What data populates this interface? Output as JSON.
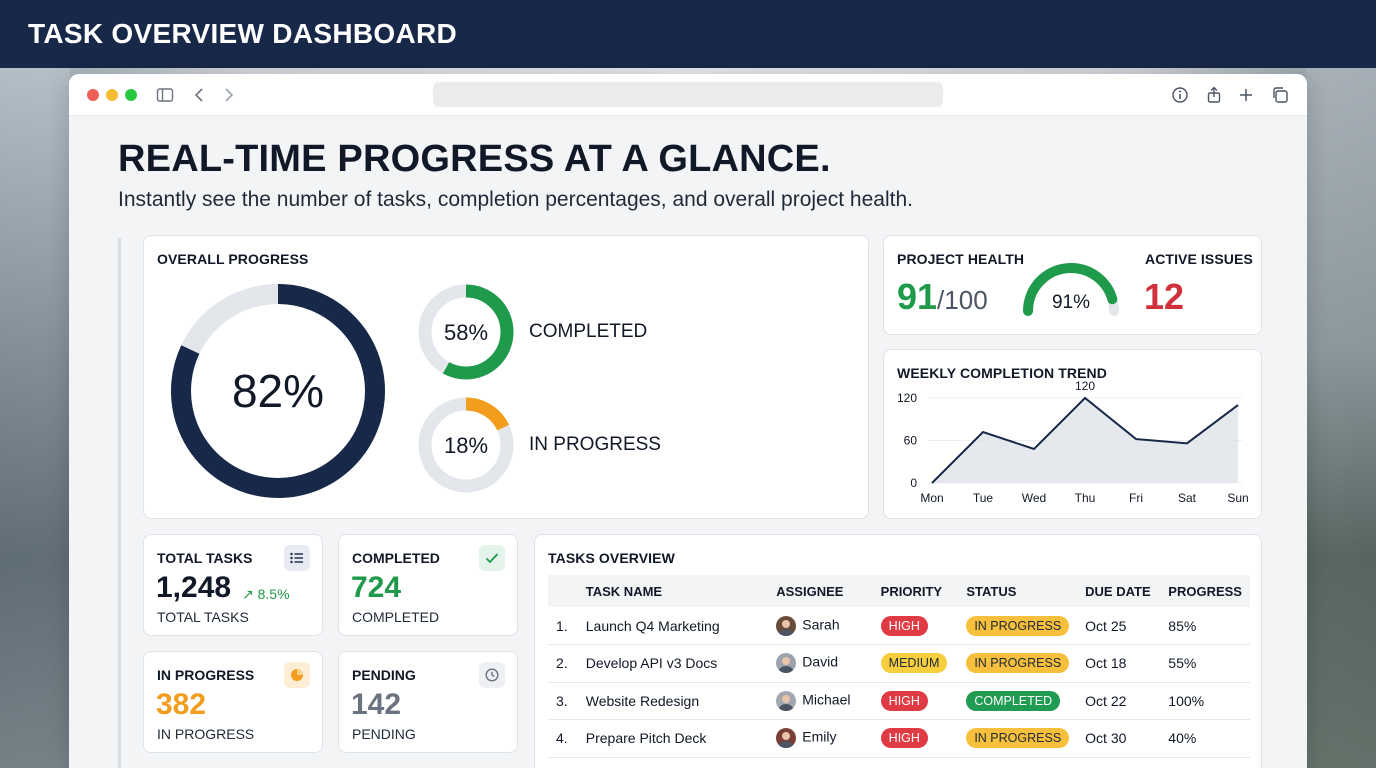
{
  "header": {
    "title": "TASK OVERVIEW DASHBOARD"
  },
  "hero": {
    "title": "REAL-TIME PROGRESS AT A GLANCE.",
    "subtitle": "Instantly see the number of tasks, completion percentages, and overall project health."
  },
  "overall_progress": {
    "title": "OVERALL PROGRESS",
    "main_percent": 82,
    "main_label": "82%",
    "completed": {
      "percent": 58,
      "label": "58%",
      "text": "COMPLETED"
    },
    "in_progress": {
      "percent": 18,
      "label": "18%",
      "text": "IN PROGRESS"
    }
  },
  "project_health": {
    "title": "PROJECT HEALTH",
    "score": "91",
    "max": "/100",
    "gauge_percent": 91,
    "gauge_label": "91%",
    "issues_title": "ACTIVE ISSUES",
    "issues_value": "12"
  },
  "chart_data": {
    "type": "line",
    "title": "WEEKLY COMPLETION TREND",
    "categories": [
      "Mon",
      "Tue",
      "Wed",
      "Thu",
      "Fri",
      "Sat",
      "Sun"
    ],
    "values": [
      0,
      72,
      48,
      120,
      62,
      56,
      110
    ],
    "y_ticks": [
      0,
      60,
      120
    ],
    "ylim": [
      0,
      120
    ],
    "annotation": {
      "category": "Thu",
      "text": "120"
    },
    "xlabel": "",
    "ylabel": ""
  },
  "stats": {
    "total": {
      "title": "TOTAL TASKS",
      "value": "1,248",
      "trend": "↗ 8.5%",
      "sub": "TOTAL TASKS"
    },
    "completed": {
      "title": "COMPLETED",
      "value": "724",
      "sub": "COMPLETED"
    },
    "in_progress": {
      "title": "IN PROGRESS",
      "value": "382",
      "sub": "IN PROGRESS"
    },
    "pending": {
      "title": "PENDING",
      "value": "142",
      "sub": "PENDING"
    }
  },
  "tasks": {
    "title": "TASKS OVERVIEW",
    "columns": [
      "TASK NAME",
      "ASSIGNEE",
      "PRIORITY",
      "STATUS",
      "DUE DATE",
      "PROGRESS"
    ],
    "rows": [
      {
        "num": "1.",
        "name": "Launch Q4 Marketing",
        "assignee": "Sarah",
        "priority": "HIGH",
        "status": "IN PROGRESS",
        "due": "Oct 25",
        "progress": "85%"
      },
      {
        "num": "2.",
        "name": "Develop API v3 Docs",
        "assignee": "David",
        "priority": "MEDIUM",
        "status": "IN PROGRESS",
        "due": "Oct 18",
        "progress": "55%"
      },
      {
        "num": "3.",
        "name": "Website Redesign",
        "assignee": "Michael",
        "priority": "HIGH",
        "status": "COMPLETED",
        "due": "Oct 22",
        "progress": "100%"
      },
      {
        "num": "4.",
        "name": "Prepare Pitch Deck",
        "assignee": "Emily",
        "priority": "HIGH",
        "status": "IN PROGRESS",
        "due": "Oct 30",
        "progress": "40%"
      }
    ]
  },
  "colors": {
    "navy": "#172848",
    "green": "#1e9a4a",
    "orange": "#f29d1d",
    "red": "#d0313a",
    "track": "#e3e6ea",
    "high_bg": "#e03a44",
    "medium_bg": "#f7cf3e",
    "inprogress_bg": "#f6bf3c",
    "completed_bg": "#1f9c52"
  }
}
